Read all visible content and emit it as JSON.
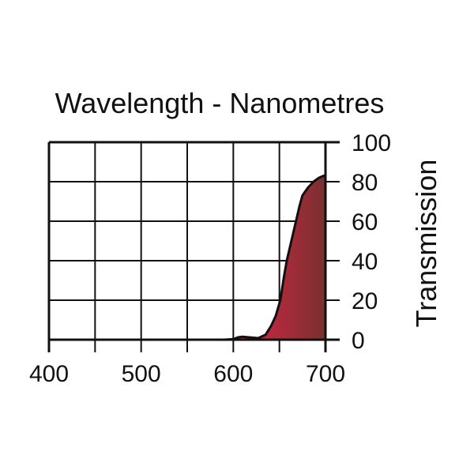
{
  "chart_data": {
    "type": "area",
    "title": "Wavelength - Nanometres",
    "xlabel": "Wavelength - Nanometres",
    "ylabel": "Transmission",
    "xlim": [
      400,
      700
    ],
    "ylim": [
      0,
      100
    ],
    "x_ticks": [
      "400",
      "500",
      "600",
      "700"
    ],
    "y_ticks": [
      "0",
      "20",
      "40",
      "60",
      "80",
      "100"
    ],
    "x_tick_values": [
      400,
      500,
      600,
      700
    ],
    "y_tick_values": [
      0,
      20,
      40,
      60,
      80,
      100
    ],
    "x_grid_step": 50,
    "y_grid_step": 20,
    "grid": true,
    "series": [
      {
        "name": "Transmission",
        "x": [
          590,
          600,
          605,
          610,
          617,
          627,
          635,
          641,
          646,
          651,
          655,
          658,
          663,
          668,
          672,
          675,
          681,
          687,
          693,
          698,
          700
        ],
        "y": [
          0,
          0.3,
          1.2,
          1.5,
          1.2,
          0.8,
          2.5,
          7,
          12,
          20,
          32,
          40,
          50,
          60,
          68,
          73,
          77,
          80,
          82,
          83,
          83
        ],
        "fill_colors": [
          "#e8234a",
          "#7a3030"
        ],
        "line_color": "#111111"
      }
    ]
  }
}
